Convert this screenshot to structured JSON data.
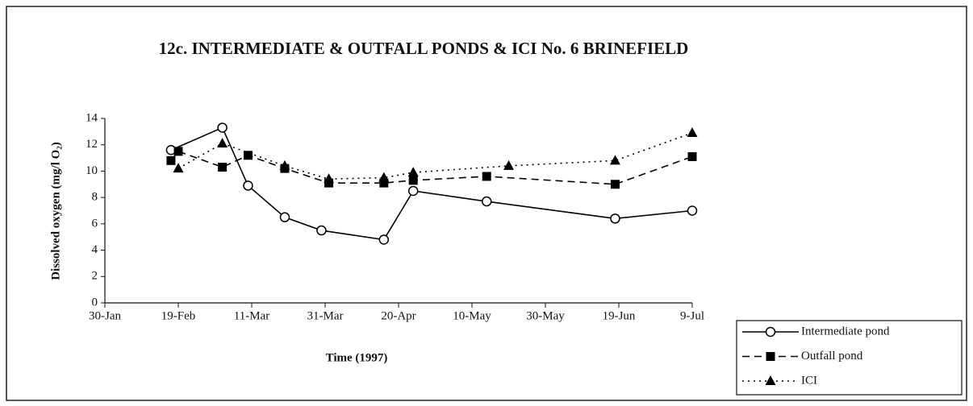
{
  "chart_data": {
    "type": "line",
    "title": "12c. INTERMEDIATE & OUTFALL PONDS & ICI No. 6 BRINEFIELD",
    "x_label": "Time (1997)",
    "y_label": "Dissolved oxygen (mg/l O₂)",
    "xlim": [
      "1997-01-30",
      "1997-07-09"
    ],
    "xticks": [
      {
        "value": "1997-01-30",
        "label": "30-Jan"
      },
      {
        "value": "1997-02-19",
        "label": "19-Feb"
      },
      {
        "value": "1997-03-11",
        "label": "11-Mar"
      },
      {
        "value": "1997-03-31",
        "label": "31-Mar"
      },
      {
        "value": "1997-04-20",
        "label": "20-Apr"
      },
      {
        "value": "1997-05-10",
        "label": "10-May"
      },
      {
        "value": "1997-05-30",
        "label": "30-May"
      },
      {
        "value": "1997-06-19",
        "label": "19-Jun"
      },
      {
        "value": "1997-07-09",
        "label": "9-Jul"
      }
    ],
    "ylim": [
      0,
      14
    ],
    "yticks": [
      0,
      2,
      4,
      6,
      8,
      10,
      12,
      14
    ],
    "legend": "bottom-right",
    "series": [
      {
        "name": "Intermediate pond",
        "color": "#000000",
        "style": "solid",
        "marker": "circle",
        "x": [
          "1997-02-17",
          "1997-03-03",
          "1997-03-10",
          "1997-03-20",
          "1997-03-30",
          "1997-04-16",
          "1997-04-24",
          "1997-05-14",
          "1997-06-18",
          "1997-07-09"
        ],
        "values": [
          11.6,
          13.3,
          8.9,
          6.5,
          5.5,
          4.8,
          8.5,
          7.7,
          6.4,
          7.0
        ]
      },
      {
        "name": "Outfall pond",
        "color": "#000000",
        "style": "dashed",
        "marker": "square",
        "x": [
          "1997-02-17",
          "1997-02-19",
          "1997-03-03",
          "1997-03-10",
          "1997-03-20",
          "1997-04-01",
          "1997-04-16",
          "1997-04-24",
          "1997-05-14",
          "1997-06-18",
          "1997-07-09"
        ],
        "values": [
          10.8,
          11.5,
          10.3,
          11.2,
          10.2,
          9.1,
          9.1,
          9.3,
          9.6,
          9.0,
          11.1
        ]
      },
      {
        "name": "ICI",
        "color": "#000000",
        "style": "dotted",
        "marker": "triangle",
        "x": [
          "1997-02-19",
          "1997-03-03",
          "1997-03-20",
          "1997-04-01",
          "1997-04-16",
          "1997-04-24",
          "1997-05-20",
          "1997-06-18",
          "1997-07-09"
        ],
        "values": [
          10.2,
          12.1,
          10.4,
          9.4,
          9.5,
          9.9,
          10.4,
          10.8,
          12.9
        ]
      }
    ]
  }
}
